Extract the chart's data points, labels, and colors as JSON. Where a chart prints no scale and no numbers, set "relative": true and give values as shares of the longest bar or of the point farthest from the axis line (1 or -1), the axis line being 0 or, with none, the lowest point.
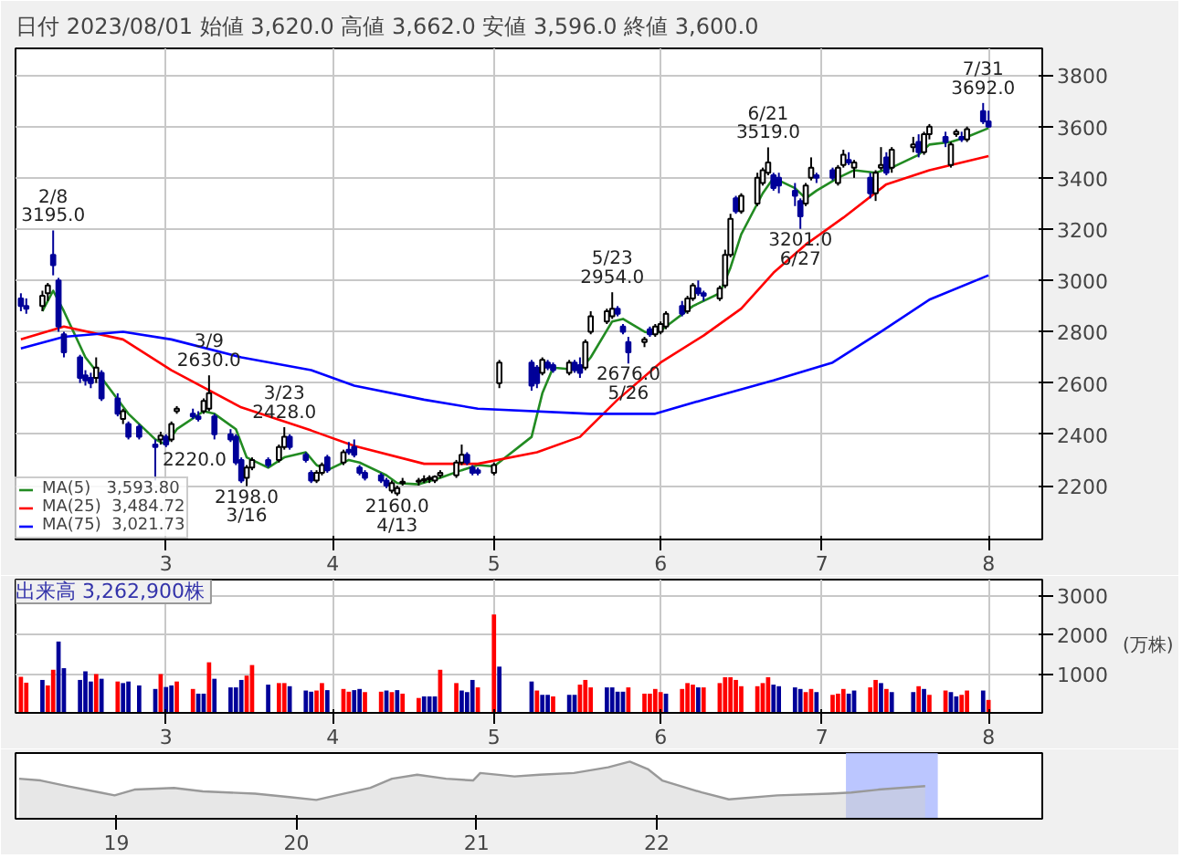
{
  "chart_data": [
    {
      "type": "candlestick",
      "title": "日付 2023/08/01   始値 3,620.0  高値 3,662.0  安値 3,596.0  終値 3,600.0",
      "x": [
        "2023-02-02",
        "2023-02-03",
        "2023-02-06",
        "2023-02-07",
        "2023-02-08",
        "2023-02-09",
        "2023-02-10",
        "2023-02-13",
        "2023-02-14",
        "2023-02-15",
        "2023-02-16",
        "2023-02-17",
        "2023-02-20",
        "2023-02-21",
        "2023-02-22",
        "2023-02-24",
        "2023-02-27",
        "2023-02-28",
        "2023-03-01",
        "2023-03-02",
        "2023-03-03",
        "2023-03-06",
        "2023-03-07",
        "2023-03-08",
        "2023-03-09",
        "2023-03-10",
        "2023-03-13",
        "2023-03-14",
        "2023-03-15",
        "2023-03-16",
        "2023-03-17",
        "2023-03-20",
        "2023-03-22",
        "2023-03-23",
        "2023-03-24",
        "2023-03-27",
        "2023-03-28",
        "2023-03-29",
        "2023-03-30",
        "2023-03-31",
        "2023-04-03",
        "2023-04-04",
        "2023-04-05",
        "2023-04-06",
        "2023-04-07",
        "2023-04-10",
        "2023-04-11",
        "2023-04-12",
        "2023-04-13",
        "2023-04-14",
        "2023-04-17",
        "2023-04-18",
        "2023-04-19",
        "2023-04-20",
        "2023-04-21",
        "2023-04-24",
        "2023-04-25",
        "2023-04-26",
        "2023-04-27",
        "2023-04-28",
        "2023-05-01",
        "2023-05-02",
        "2023-05-08",
        "2023-05-09",
        "2023-05-10",
        "2023-05-11",
        "2023-05-12",
        "2023-05-15",
        "2023-05-16",
        "2023-05-17",
        "2023-05-18",
        "2023-05-19",
        "2023-05-22",
        "2023-05-23",
        "2023-05-24",
        "2023-05-25",
        "2023-05-26",
        "2023-05-29",
        "2023-05-30",
        "2023-05-31",
        "2023-06-01",
        "2023-06-02",
        "2023-06-05",
        "2023-06-06",
        "2023-06-07",
        "2023-06-08",
        "2023-06-09",
        "2023-06-12",
        "2023-06-13",
        "2023-06-14",
        "2023-06-15",
        "2023-06-16",
        "2023-06-19",
        "2023-06-20",
        "2023-06-21",
        "2023-06-22",
        "2023-06-23",
        "2023-06-26",
        "2023-06-27",
        "2023-06-28",
        "2023-06-29",
        "2023-06-30",
        "2023-07-03",
        "2023-07-04",
        "2023-07-05",
        "2023-07-06",
        "2023-07-07",
        "2023-07-10",
        "2023-07-11",
        "2023-07-12",
        "2023-07-13",
        "2023-07-14",
        "2023-07-18",
        "2023-07-19",
        "2023-07-20",
        "2023-07-21",
        "2023-07-24",
        "2023-07-25",
        "2023-07-26",
        "2023-07-27",
        "2023-07-28",
        "2023-07-31",
        "2023-08-01"
      ],
      "ohlc": [
        [
          2930,
          2950,
          2880,
          2900
        ],
        [
          2900,
          2930,
          2870,
          2890
        ],
        [
          2900,
          2960,
          2880,
          2940
        ],
        [
          2950,
          2990,
          2920,
          2980
        ],
        [
          3100,
          3195,
          3020,
          3060
        ],
        [
          3000,
          3010,
          2800,
          2820
        ],
        [
          2790,
          2800,
          2700,
          2720
        ],
        [
          2700,
          2710,
          2600,
          2620
        ],
        [
          2630,
          2650,
          2590,
          2610
        ],
        [
          2620,
          2640,
          2580,
          2600
        ],
        [
          2620,
          2700,
          2600,
          2660
        ],
        [
          2640,
          2650,
          2530,
          2540
        ],
        [
          2540,
          2560,
          2470,
          2480
        ],
        [
          2460,
          2500,
          2440,
          2490
        ],
        [
          2440,
          2450,
          2380,
          2390
        ],
        [
          2430,
          2440,
          2380,
          2390
        ],
        [
          2360,
          2380,
          2220,
          2350
        ],
        [
          2380,
          2410,
          2360,
          2395
        ],
        [
          2390,
          2400,
          2350,
          2360
        ],
        [
          2380,
          2450,
          2370,
          2440
        ],
        [
          2490,
          2510,
          2480,
          2500
        ],
        [
          2480,
          2500,
          2460,
          2470
        ],
        [
          2470,
          2490,
          2450,
          2460
        ],
        [
          2490,
          2540,
          2480,
          2530
        ],
        [
          2500,
          2630,
          2490,
          2560
        ],
        [
          2470,
          2480,
          2380,
          2400
        ],
        [
          2400,
          2420,
          2370,
          2380
        ],
        [
          2390,
          2400,
          2280,
          2290
        ],
        [
          2300,
          2310,
          2210,
          2220
        ],
        [
          2230,
          2280,
          2198,
          2270
        ],
        [
          2270,
          2310,
          2260,
          2300
        ],
        [
          2300,
          2310,
          2270,
          2280
        ],
        [
          2300,
          2360,
          2290,
          2350
        ],
        [
          2350,
          2428,
          2340,
          2390
        ],
        [
          2390,
          2400,
          2340,
          2350
        ],
        [
          2320,
          2330,
          2290,
          2300
        ],
        [
          2250,
          2260,
          2210,
          2220
        ],
        [
          2220,
          2260,
          2210,
          2250
        ],
        [
          2250,
          2290,
          2240,
          2280
        ],
        [
          2310,
          2320,
          2250,
          2260
        ],
        [
          2290,
          2340,
          2280,
          2330
        ],
        [
          2340,
          2370,
          2320,
          2330
        ],
        [
          2350,
          2380,
          2310,
          2320
        ],
        [
          2270,
          2280,
          2240,
          2250
        ],
        [
          2250,
          2260,
          2220,
          2230
        ],
        [
          2240,
          2250,
          2210,
          2220
        ],
        [
          2220,
          2230,
          2190,
          2200
        ],
        [
          2180,
          2220,
          2170,
          2210
        ],
        [
          2170,
          2200,
          2160,
          2190
        ],
        [
          2210,
          2230,
          2200,
          2215
        ],
        [
          2215,
          2230,
          2200,
          2220
        ],
        [
          2220,
          2240,
          2210,
          2225
        ],
        [
          2225,
          2240,
          2210,
          2230
        ],
        [
          2220,
          2240,
          2210,
          2235
        ],
        [
          2240,
          2260,
          2230,
          2250
        ],
        [
          2240,
          2300,
          2230,
          2290
        ],
        [
          2290,
          2360,
          2280,
          2320
        ],
        [
          2320,
          2330,
          2280,
          2290
        ],
        [
          2270,
          2280,
          2240,
          2250
        ],
        [
          2260,
          2270,
          2240,
          2250
        ],
        [
          2250,
          2290,
          2240,
          2280
        ],
        [
          2600,
          2690,
          2580,
          2680
        ],
        [
          2680,
          2690,
          2570,
          2590
        ],
        [
          2660,
          2670,
          2580,
          2600
        ],
        [
          2640,
          2700,
          2630,
          2690
        ],
        [
          2680,
          2690,
          2650,
          2660
        ],
        [
          2670,
          2680,
          2640,
          2650
        ],
        [
          2640,
          2690,
          2630,
          2680
        ],
        [
          2680,
          2690,
          2640,
          2650
        ],
        [
          2670,
          2700,
          2620,
          2640
        ],
        [
          2660,
          2770,
          2650,
          2760
        ],
        [
          2800,
          2880,
          2790,
          2860
        ],
        [
          2840,
          2890,
          2830,
          2880
        ],
        [
          2860,
          2954,
          2850,
          2890
        ],
        [
          2890,
          2900,
          2860,
          2870
        ],
        [
          2820,
          2830,
          2790,
          2800
        ],
        [
          2760,
          2780,
          2676,
          2720
        ],
        [
          2760,
          2780,
          2740,
          2770
        ],
        [
          2810,
          2820,
          2780,
          2790
        ],
        [
          2790,
          2830,
          2780,
          2820
        ],
        [
          2800,
          2840,
          2790,
          2830
        ],
        [
          2820,
          2880,
          2810,
          2870
        ],
        [
          2900,
          2920,
          2860,
          2870
        ],
        [
          2880,
          2940,
          2870,
          2930
        ],
        [
          2930,
          2990,
          2920,
          2980
        ],
        [
          2970,
          3000,
          2940,
          2950
        ],
        [
          2950,
          2960,
          2920,
          2940
        ],
        [
          2930,
          2980,
          2920,
          2970
        ],
        [
          2980,
          3120,
          2970,
          3100
        ],
        [
          3100,
          3260,
          3090,
          3240
        ],
        [
          3320,
          3330,
          3260,
          3270
        ],
        [
          3270,
          3340,
          3260,
          3330
        ],
        [
          3300,
          3420,
          3290,
          3400
        ],
        [
          3380,
          3440,
          3370,
          3430
        ],
        [
          3420,
          3519,
          3410,
          3460
        ],
        [
          3410,
          3420,
          3350,
          3360
        ],
        [
          3400,
          3420,
          3340,
          3370
        ],
        [
          3350,
          3380,
          3290,
          3330
        ],
        [
          3310,
          3320,
          3201,
          3250
        ],
        [
          3300,
          3380,
          3290,
          3370
        ],
        [
          3400,
          3480,
          3390,
          3440
        ],
        [
          3410,
          3420,
          3380,
          3400
        ],
        [
          3430,
          3440,
          3390,
          3400
        ],
        [
          3380,
          3450,
          3370,
          3440
        ],
        [
          3450,
          3510,
          3440,
          3490
        ],
        [
          3470,
          3500,
          3450,
          3460
        ],
        [
          3440,
          3470,
          3400,
          3460
        ],
        [
          3400,
          3420,
          3320,
          3340
        ],
        [
          3340,
          3430,
          3310,
          3420
        ],
        [
          3440,
          3520,
          3430,
          3450
        ],
        [
          3480,
          3500,
          3410,
          3420
        ],
        [
          3440,
          3520,
          3420,
          3510
        ],
        [
          3520,
          3560,
          3500,
          3530
        ],
        [
          3540,
          3570,
          3480,
          3500
        ],
        [
          3500,
          3580,
          3490,
          3570
        ],
        [
          3570,
          3610,
          3550,
          3600
        ],
        [
          3560,
          3580,
          3520,
          3540
        ],
        [
          3450,
          3540,
          3440,
          3530
        ],
        [
          3570,
          3590,
          3560,
          3580
        ],
        [
          3560,
          3580,
          3540,
          3550
        ],
        [
          3550,
          3600,
          3540,
          3590
        ],
        [
          3660,
          3692,
          3610,
          3620
        ],
        [
          3620,
          3662,
          3596,
          3600
        ]
      ],
      "colors": [
        "#000099",
        "#000099",
        "#ffffff",
        "#ffffff",
        "#000099",
        "#000099",
        "#000099",
        "#000099",
        "#000099",
        "#000099",
        "#ffffff",
        "#000099",
        "#000099",
        "#ffffff",
        "#000099",
        "#000099",
        "#000099",
        "#ffffff",
        "#000099",
        "#ffffff",
        "#ffffff",
        "#000099",
        "#000099",
        "#ffffff",
        "#ffffff",
        "#000099",
        "#000099",
        "#000099",
        "#000099",
        "#ffffff",
        "#ffffff",
        "#000099",
        "#ffffff",
        "#ffffff",
        "#000099",
        "#000099",
        "#000099",
        "#ffffff",
        "#ffffff",
        "#000099",
        "#ffffff",
        "#000099",
        "#000099",
        "#000099",
        "#000099",
        "#000099",
        "#000099",
        "#ffffff",
        "#ffffff",
        "#ffffff",
        "#ffffff",
        "#ffffff",
        "#ffffff",
        "#ffffff",
        "#ffffff",
        "#ffffff",
        "#ffffff",
        "#000099",
        "#000099",
        "#000099",
        "#ffffff",
        "#ffffff",
        "#000099",
        "#000099",
        "#ffffff",
        "#000099",
        "#000099",
        "#ffffff",
        "#000099",
        "#000099",
        "#ffffff",
        "#ffffff",
        "#ffffff",
        "#ffffff",
        "#000099",
        "#000099",
        "#000099",
        "#ffffff",
        "#000099",
        "#ffffff",
        "#ffffff",
        "#ffffff",
        "#000099",
        "#ffffff",
        "#ffffff",
        "#000099",
        "#000099",
        "#ffffff",
        "#ffffff",
        "#ffffff",
        "#000099",
        "#ffffff",
        "#ffffff",
        "#ffffff",
        "#ffffff",
        "#000099",
        "#000099",
        "#000099",
        "#000099",
        "#ffffff",
        "#ffffff",
        "#000099",
        "#000099",
        "#ffffff",
        "#ffffff",
        "#000099",
        "#ffffff",
        "#000099",
        "#ffffff",
        "#ffffff",
        "#000099",
        "#ffffff",
        "#ffffff",
        "#000099",
        "#ffffff",
        "#ffffff",
        "#000099",
        "#ffffff",
        "#ffffff",
        "#000099",
        "#ffffff",
        "#000099",
        "#000099"
      ],
      "series": [
        {
          "type": "line",
          "name": "MA(5)   3,593.80",
          "color": "#228b22",
          "x": [
            "2023-02-06",
            "2023-02-08",
            "2023-02-10",
            "2023-02-14",
            "2023-02-17",
            "2023-02-22",
            "2023-02-27",
            "2023-03-01",
            "2023-03-03",
            "2023-03-08",
            "2023-03-10",
            "2023-03-14",
            "2023-03-16",
            "2023-03-20",
            "2023-03-23",
            "2023-03-27",
            "2023-03-29",
            "2023-03-31",
            "2023-04-04",
            "2023-04-06",
            "2023-04-11",
            "2023-04-13",
            "2023-04-17",
            "2023-04-21",
            "2023-04-25",
            "2023-04-28",
            "2023-05-01",
            "2023-05-08",
            "2023-05-10",
            "2023-05-12",
            "2023-05-17",
            "2023-05-19",
            "2023-05-23",
            "2023-05-25",
            "2023-05-29",
            "2023-05-31",
            "2023-06-02",
            "2023-06-07",
            "2023-06-12",
            "2023-06-14",
            "2023-06-16",
            "2023-06-20",
            "2023-06-22",
            "2023-06-26",
            "2023-06-28",
            "2023-06-30",
            "2023-07-04",
            "2023-07-07",
            "2023-07-11",
            "2023-07-14",
            "2023-07-19",
            "2023-07-21",
            "2023-07-25",
            "2023-07-28",
            "2023-08-01"
          ],
          "values": [
            2880,
            2960,
            2880,
            2700,
            2620,
            2480,
            2380,
            2360,
            2420,
            2490,
            2480,
            2420,
            2310,
            2270,
            2310,
            2330,
            2280,
            2260,
            2300,
            2290,
            2240,
            2210,
            2205,
            2230,
            2260,
            2280,
            2275,
            2390,
            2560,
            2660,
            2650,
            2700,
            2840,
            2850,
            2800,
            2790,
            2820,
            2900,
            2950,
            3050,
            3180,
            3340,
            3400,
            3360,
            3320,
            3350,
            3400,
            3430,
            3420,
            3440,
            3490,
            3530,
            3540,
            3560,
            3594
          ]
        },
        {
          "type": "line",
          "name": "MA(25)  3,484.72",
          "color": "#ff0000",
          "x": [
            "2023-02-02",
            "2023-02-10",
            "2023-02-21",
            "2023-03-02",
            "2023-03-15",
            "2023-03-28",
            "2023-04-05",
            "2023-04-18",
            "2023-04-28",
            "2023-05-09",
            "2023-05-17",
            "2023-05-24",
            "2023-06-01",
            "2023-06-09",
            "2023-06-16",
            "2023-06-22",
            "2023-06-28",
            "2023-07-05",
            "2023-07-13",
            "2023-07-21",
            "2023-08-01"
          ],
          "values": [
            2770,
            2820,
            2770,
            2650,
            2505,
            2415,
            2355,
            2285,
            2285,
            2330,
            2390,
            2535,
            2680,
            2785,
            2890,
            3030,
            3140,
            3245,
            3375,
            3430,
            3485
          ]
        },
        {
          "type": "line",
          "name": "MA(75)  3,021.73",
          "color": "#0000ff",
          "x": [
            "2023-02-02",
            "2023-02-10",
            "2023-02-21",
            "2023-03-02",
            "2023-03-15",
            "2023-03-28",
            "2023-04-05",
            "2023-04-18",
            "2023-04-28",
            "2023-05-19",
            "2023-05-31",
            "2023-06-09",
            "2023-06-22",
            "2023-07-03",
            "2023-07-12",
            "2023-07-21",
            "2023-08-01"
          ],
          "values": [
            2735,
            2780,
            2800,
            2770,
            2700,
            2650,
            2590,
            2535,
            2500,
            2480,
            2480,
            2535,
            2610,
            2680,
            2800,
            2925,
            3020
          ]
        }
      ],
      "annotations": [
        {
          "text": "2/8\n3195.0",
          "x": "2023-02-08",
          "y": 3195
        },
        {
          "text": "2220.0",
          "x": "2023-02-27",
          "y": 2220
        },
        {
          "text": "3/9\n2630.0",
          "x": "2023-03-09",
          "y": 2630
        },
        {
          "text": "2198.0\n3/16",
          "x": "2023-03-16",
          "y": 2198
        },
        {
          "text": "3/23\n2428.0",
          "x": "2023-03-23",
          "y": 2428
        },
        {
          "text": "2160.0\n4/13",
          "x": "2023-04-13",
          "y": 2160
        },
        {
          "text": "5/23\n2954.0",
          "x": "2023-05-23",
          "y": 2954
        },
        {
          "text": "2676.0\n5/26",
          "x": "2023-05-26",
          "y": 2676
        },
        {
          "text": "6/21\n3519.0",
          "x": "2023-06-21",
          "y": 3519
        },
        {
          "text": "3201.0\n6/27",
          "x": "2023-06-27",
          "y": 3201
        },
        {
          "text": "7/31\n3692.0",
          "x": "2023-07-31",
          "y": 3692
        }
      ],
      "xlim": [
        "2023-02-01",
        "2023-08-11"
      ],
      "xticks": [
        {
          "value": "2023-03-01",
          "label": "3"
        },
        {
          "value": "2023-04-01",
          "label": "4"
        },
        {
          "value": "2023-05-01",
          "label": "5"
        },
        {
          "value": "2023-06-01",
          "label": "6"
        },
        {
          "value": "2023-07-01",
          "label": "7"
        },
        {
          "value": "2023-08-01",
          "label": "8"
        }
      ],
      "ylim": [
        1990,
        3905
      ],
      "yticks": [
        2200,
        2400,
        2600,
        2800,
        3000,
        3200,
        3400,
        3600,
        3800
      ],
      "grid": true,
      "legend": "bottom left"
    },
    {
      "type": "bar",
      "title": "出来高  3,262,900株",
      "ylabel": "(万株)",
      "x": [
        "2023-02-02",
        "2023-02-03",
        "2023-02-06",
        "2023-02-07",
        "2023-02-08",
        "2023-02-09",
        "2023-02-10",
        "2023-02-13",
        "2023-02-14",
        "2023-02-15",
        "2023-02-16",
        "2023-02-17",
        "2023-02-20",
        "2023-02-21",
        "2023-02-22",
        "2023-02-24",
        "2023-02-27",
        "2023-02-28",
        "2023-03-01",
        "2023-03-02",
        "2023-03-03",
        "2023-03-06",
        "2023-03-07",
        "2023-03-08",
        "2023-03-09",
        "2023-03-10",
        "2023-03-13",
        "2023-03-14",
        "2023-03-15",
        "2023-03-16",
        "2023-03-17",
        "2023-03-20",
        "2023-03-22",
        "2023-03-23",
        "2023-03-24",
        "2023-03-27",
        "2023-03-28",
        "2023-03-29",
        "2023-03-30",
        "2023-03-31",
        "2023-04-03",
        "2023-04-04",
        "2023-04-05",
        "2023-04-06",
        "2023-04-07",
        "2023-04-10",
        "2023-04-11",
        "2023-04-12",
        "2023-04-13",
        "2023-04-14",
        "2023-04-17",
        "2023-04-18",
        "2023-04-19",
        "2023-04-20",
        "2023-04-21",
        "2023-04-24",
        "2023-04-25",
        "2023-04-26",
        "2023-04-27",
        "2023-04-28",
        "2023-05-01",
        "2023-05-02",
        "2023-05-08",
        "2023-05-09",
        "2023-05-10",
        "2023-05-11",
        "2023-05-12",
        "2023-05-15",
        "2023-05-16",
        "2023-05-17",
        "2023-05-18",
        "2023-05-19",
        "2023-05-22",
        "2023-05-23",
        "2023-05-24",
        "2023-05-25",
        "2023-05-26",
        "2023-05-29",
        "2023-05-30",
        "2023-05-31",
        "2023-06-01",
        "2023-06-02",
        "2023-06-05",
        "2023-06-06",
        "2023-06-07",
        "2023-06-08",
        "2023-06-09",
        "2023-06-12",
        "2023-06-13",
        "2023-06-14",
        "2023-06-15",
        "2023-06-16",
        "2023-06-19",
        "2023-06-20",
        "2023-06-21",
        "2023-06-22",
        "2023-06-23",
        "2023-06-26",
        "2023-06-27",
        "2023-06-28",
        "2023-06-29",
        "2023-06-30",
        "2023-07-03",
        "2023-07-04",
        "2023-07-05",
        "2023-07-06",
        "2023-07-07",
        "2023-07-10",
        "2023-07-11",
        "2023-07-12",
        "2023-07-13",
        "2023-07-14",
        "2023-07-18",
        "2023-07-19",
        "2023-07-20",
        "2023-07-21",
        "2023-07-24",
        "2023-07-25",
        "2023-07-26",
        "2023-07-27",
        "2023-07-28",
        "2023-07-31",
        "2023-08-01"
      ],
      "values": [
        920,
        770,
        840,
        700,
        1100,
        1820,
        1140,
        840,
        1060,
        800,
        990,
        870,
        800,
        760,
        800,
        700,
        610,
        990,
        660,
        700,
        800,
        610,
        490,
        490,
        1290,
        870,
        650,
        650,
        840,
        950,
        1220,
        720,
        760,
        760,
        680,
        570,
        540,
        570,
        760,
        580,
        610,
        540,
        580,
        610,
        530,
        540,
        570,
        530,
        580,
        490,
        380,
        420,
        420,
        420,
        1100,
        760,
        570,
        530,
        840,
        650,
        2510,
        1180,
        800,
        570,
        460,
        460,
        420,
        460,
        460,
        720,
        840,
        650,
        650,
        650,
        540,
        540,
        650,
        490,
        490,
        610,
        530,
        490,
        610,
        760,
        720,
        650,
        650,
        760,
        910,
        910,
        840,
        680,
        680,
        760,
        910,
        720,
        680,
        650,
        610,
        530,
        610,
        530,
        460,
        490,
        610,
        490,
        570,
        650,
        840,
        760,
        610,
        530,
        530,
        680,
        610,
        460,
        570,
        530,
        420,
        460,
        570,
        570,
        330
      ],
      "colors": [
        "#ff0000",
        "#ff0000",
        "#000099",
        "#ff0000",
        "#ff0000",
        "#000099",
        "#000099",
        "#000099",
        "#000099",
        "#000099",
        "#ff0000",
        "#000099",
        "#ff0000",
        "#000099",
        "#000099",
        "#000099",
        "#000099",
        "#ff0000",
        "#000099",
        "#000099",
        "#ff0000",
        "#ff0000",
        "#000099",
        "#000099",
        "#ff0000",
        "#000099",
        "#000099",
        "#000099",
        "#000099",
        "#ff0000",
        "#ff0000",
        "#000099",
        "#ff0000",
        "#ff0000",
        "#000099",
        "#000099",
        "#000099",
        "#ff0000",
        "#ff0000",
        "#000099",
        "#ff0000",
        "#ff0000",
        "#000099",
        "#000099",
        "#ff0000",
        "#ff0000",
        "#000099",
        "#ff0000",
        "#000099",
        "#ff0000",
        "#ff0000",
        "#000099",
        "#000099",
        "#000099",
        "#ff0000",
        "#ff0000",
        "#000099",
        "#000099",
        "#000099",
        "#ff0000",
        "#ff0000",
        "#000099",
        "#000099",
        "#ff0000",
        "#000099",
        "#000099",
        "#ff0000",
        "#000099",
        "#000099",
        "#ff0000",
        "#ff0000",
        "#ff0000",
        "#000099",
        "#000099",
        "#000099",
        "#000099",
        "#ff0000",
        "#ff0000",
        "#ff0000",
        "#ff0000",
        "#ff0000",
        "#000099",
        "#ff0000",
        "#ff0000",
        "#ff0000",
        "#000099",
        "#ff0000",
        "#ff0000",
        "#ff0000",
        "#ff0000",
        "#ff0000",
        "#ff0000",
        "#ff0000",
        "#ff0000",
        "#ff0000",
        "#000099",
        "#000099",
        "#000099",
        "#000099",
        "#ff0000",
        "#ff0000",
        "#000099",
        "#ff0000",
        "#ff0000",
        "#ff0000",
        "#000099",
        "#000099",
        "#ff0000",
        "#ff0000",
        "#000099",
        "#ff0000",
        "#000099",
        "#000099",
        "#ff0000",
        "#000099",
        "#ff0000",
        "#ff0000",
        "#000099",
        "#000099",
        "#ff0000",
        "#ff0000",
        "#000099",
        "#ff0000"
      ],
      "xlim": [
        "2023-02-01",
        "2023-08-11"
      ],
      "xticks": [
        {
          "value": "2023-03-01",
          "label": "3"
        },
        {
          "value": "2023-04-01",
          "label": "4"
        },
        {
          "value": "2023-05-01",
          "label": "5"
        },
        {
          "value": "2023-06-01",
          "label": "6"
        },
        {
          "value": "2023-07-01",
          "label": "7"
        },
        {
          "value": "2023-08-01",
          "label": "8"
        }
      ],
      "ylim": [
        0,
        3400
      ],
      "yticks": [
        1000,
        2000,
        3000
      ],
      "grid": true
    },
    {
      "type": "area",
      "relative": true,
      "color": "#999999",
      "x": [
        2018.46,
        2018.58,
        2018.73,
        2018.91,
        2018.99,
        2019.1,
        2019.32,
        2019.48,
        2019.77,
        2019.96,
        2020.11,
        2020.22,
        2020.41,
        2020.53,
        2020.67,
        2020.83,
        2020.98,
        2021.02,
        2021.21,
        2021.35,
        2021.54,
        2021.73,
        2021.85,
        2021.95,
        2022.03,
        2022.25,
        2022.4,
        2022.67,
        2022.96,
        2023.08,
        2023.23,
        2023.49
      ],
      "values": [
        0.7,
        0.67,
        0.57,
        0.46,
        0.41,
        0.51,
        0.54,
        0.48,
        0.44,
        0.38,
        0.33,
        0.41,
        0.54,
        0.7,
        0.77,
        0.7,
        0.67,
        0.8,
        0.74,
        0.77,
        0.8,
        0.9,
        1,
        0.87,
        0.67,
        0.46,
        0.34,
        0.41,
        0.44,
        0.46,
        0.51,
        0.57
      ],
      "xlim": [
        2018.44,
        2024.14
      ],
      "xticks": [
        {
          "value": 2019,
          "label": "19"
        },
        {
          "value": 2020,
          "label": "20"
        },
        {
          "value": 2021,
          "label": "21"
        },
        {
          "value": 2022,
          "label": "22"
        }
      ],
      "bands": [
        {
          "axis": "x",
          "from": 2023.05,
          "to": 2023.56,
          "color": "#aab8ff"
        }
      ]
    }
  ]
}
